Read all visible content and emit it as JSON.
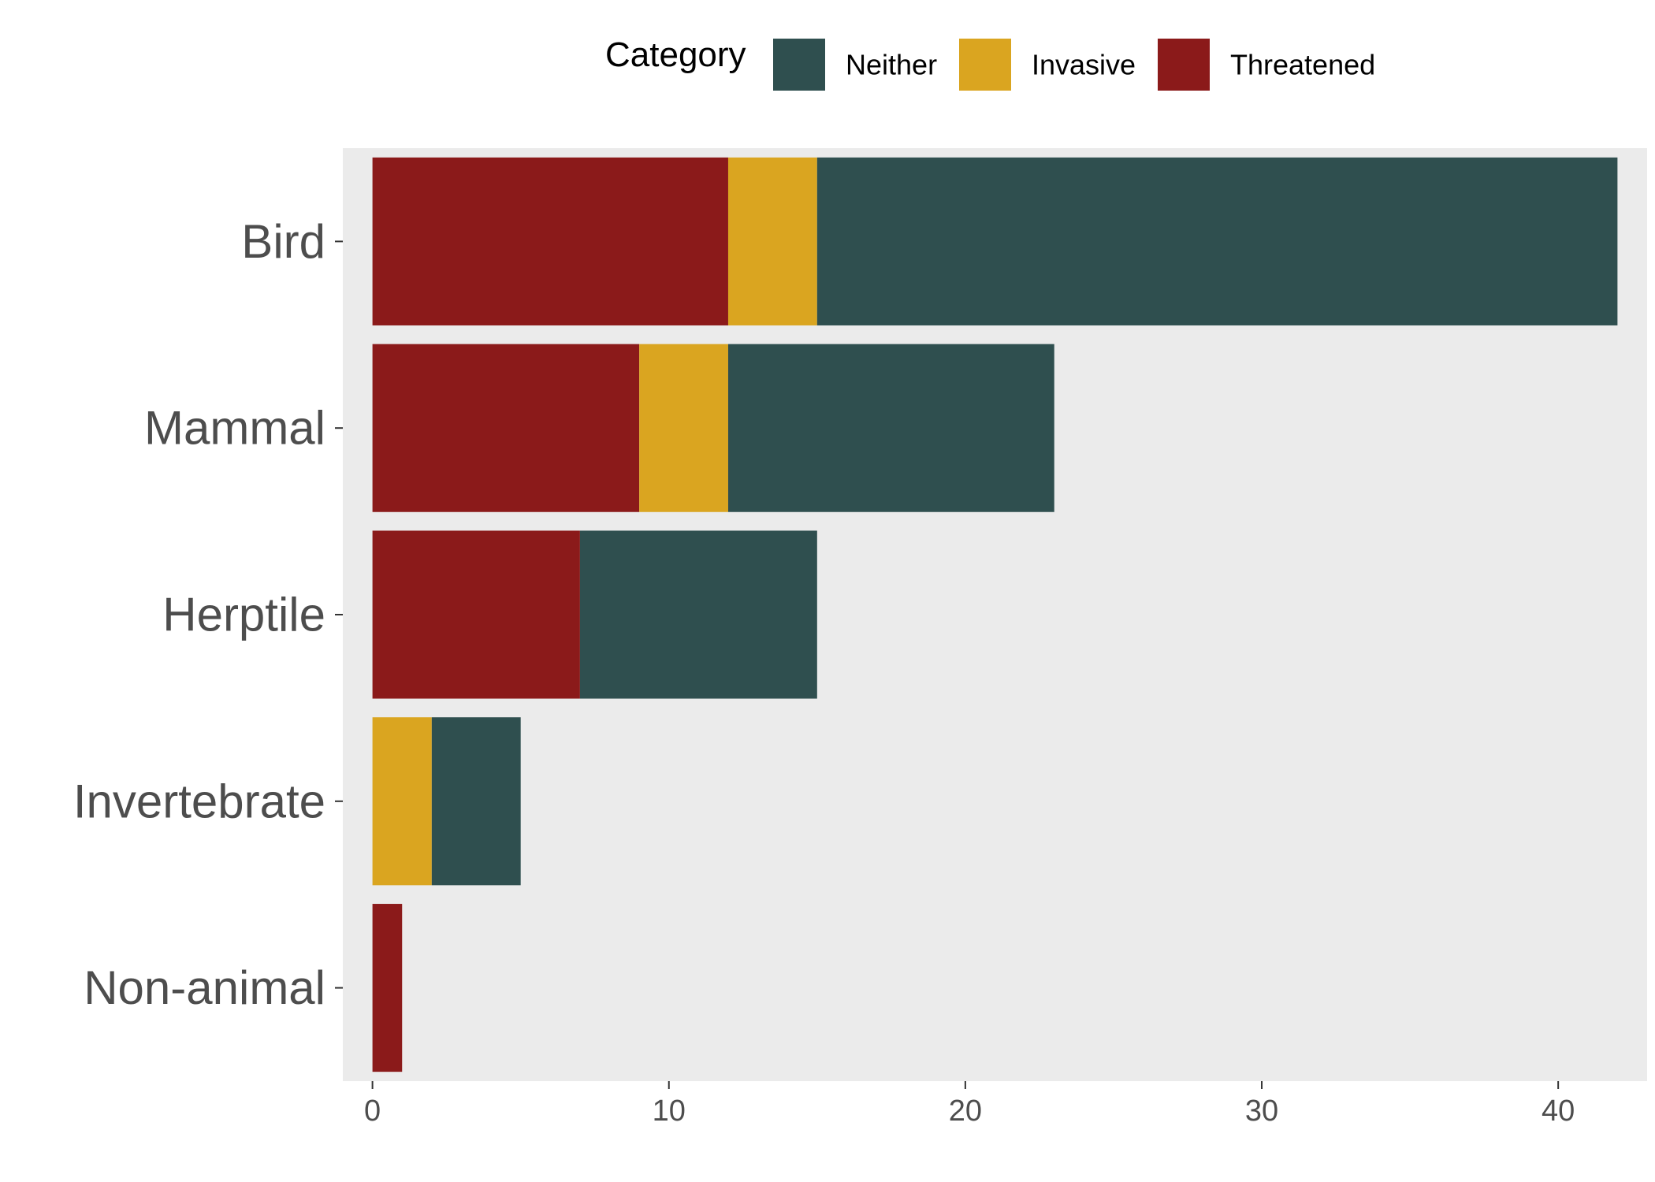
{
  "chart_data": {
    "type": "bar",
    "orientation": "horizontal",
    "stacked": true,
    "categories": [
      "Bird",
      "Mammal",
      "Herptile",
      "Invertebrate",
      "Non-animal"
    ],
    "series": [
      {
        "name": "Threatened",
        "color": "#8B1A1A",
        "values": [
          12,
          9,
          7,
          0,
          1
        ]
      },
      {
        "name": "Invasive",
        "color": "#DAA520",
        "values": [
          3,
          3,
          0,
          2,
          0
        ]
      },
      {
        "name": "Neither",
        "color": "#2F4F4F",
        "values": [
          27,
          11,
          8,
          3,
          0
        ]
      }
    ],
    "legend": {
      "title": "Category",
      "order": [
        "Neither",
        "Invasive",
        "Threatened"
      ],
      "placement": "top"
    },
    "x_ticks": [
      0,
      10,
      20,
      30,
      40
    ],
    "xlim": [
      -1,
      43
    ],
    "panel_background": "#EBEBEB",
    "grid": false
  }
}
